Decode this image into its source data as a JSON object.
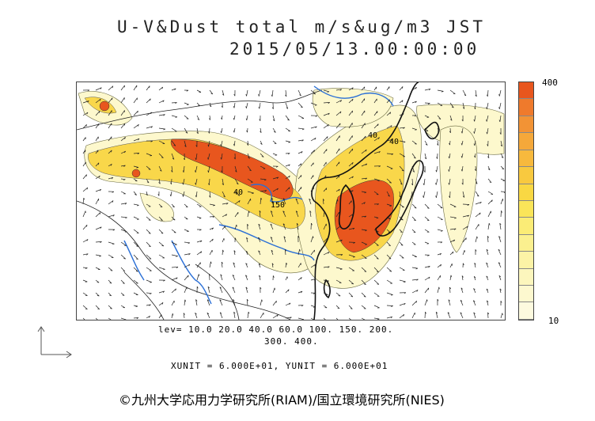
{
  "title": {
    "line1": "U-V&Dust total m/s&ug/m3 JST",
    "line2": "2015/05/13.00:00:00"
  },
  "colorbar": {
    "max_label": "400",
    "min_label": "10",
    "colors": [
      "#e8561e",
      "#ef7a2c",
      "#f29335",
      "#f5a83a",
      "#f7b93d",
      "#f8c93f",
      "#f9d843",
      "#fae559",
      "#fbec76",
      "#fbf08f",
      "#fcf3a6",
      "#fcf6bd",
      "#fdf8cf",
      "#fdfadf"
    ]
  },
  "levels": {
    "line1": "lev= 10.0 20.0 40.0 60.0 100. 150. 200.",
    "line2": "300. 400."
  },
  "units": "XUNIT = 6.000E+01, YUNIT = 6.000E+01",
  "copyright": "©九州大学応用力学研究所(RIAM)/国立環境研究所(NIES)",
  "contour_labels": [
    "40",
    "150",
    "40",
    "40"
  ],
  "colors": {
    "land_line": "#111111",
    "river": "#2a6fd6",
    "dust_low": "#fdfacb",
    "dust_mid": "#f9d843",
    "dust_high": "#e8561e"
  }
}
